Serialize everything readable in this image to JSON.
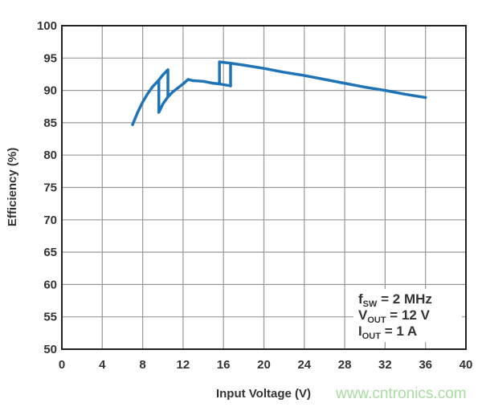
{
  "chart_data": {
    "type": "line",
    "title": "",
    "xlabel": "Input Voltage (V)",
    "ylabel": "Efficiency (%)",
    "xlim": [
      0,
      40
    ],
    "ylim": [
      50,
      100
    ],
    "xticks": [
      0,
      4,
      8,
      12,
      16,
      20,
      24,
      28,
      32,
      36,
      40
    ],
    "yticks": [
      50,
      55,
      60,
      65,
      70,
      75,
      80,
      85,
      90,
      95,
      100
    ],
    "grid": true,
    "line_color": "#1f73b7",
    "series": [
      {
        "segments": [
          [
            [
              7.0,
              84.7
            ],
            [
              7.5,
              86.6
            ],
            [
              8.0,
              88.2
            ],
            [
              8.5,
              89.5
            ],
            [
              9.0,
              90.6
            ],
            [
              9.6,
              91.6
            ],
            [
              10.0,
              92.4
            ],
            [
              10.5,
              93.2
            ],
            [
              10.5,
              89.0
            ]
          ],
          [
            [
              9.6,
              91.6
            ],
            [
              9.6,
              86.6
            ],
            [
              10.0,
              87.9
            ],
            [
              10.5,
              89.0
            ],
            [
              11.0,
              89.8
            ],
            [
              11.5,
              90.4
            ],
            [
              12.0,
              91.0
            ],
            [
              12.5,
              91.7
            ],
            [
              13.0,
              91.5
            ],
            [
              14.0,
              91.4
            ],
            [
              15.0,
              91.1
            ],
            [
              15.6,
              91.0
            ],
            [
              16.7,
              90.7
            ]
          ],
          [
            [
              15.6,
              91.0
            ],
            [
              15.6,
              94.4
            ],
            [
              16.7,
              94.2
            ],
            [
              16.7,
              90.7
            ]
          ],
          [
            [
              16.7,
              94.2
            ],
            [
              18.0,
              93.9
            ],
            [
              20.0,
              93.4
            ],
            [
              22.0,
              92.8
            ],
            [
              24.0,
              92.3
            ],
            [
              26.0,
              91.7
            ],
            [
              28.0,
              91.1
            ],
            [
              30.0,
              90.5
            ],
            [
              32.0,
              90.0
            ],
            [
              34.0,
              89.4
            ],
            [
              36.0,
              88.9
            ]
          ]
        ]
      }
    ],
    "annotation": {
      "lines": [
        {
          "main": "f",
          "sub": "SW",
          "rest": " = 2 MHz"
        },
        {
          "main": "V",
          "sub": "OUT",
          "rest": " = 12 V"
        },
        {
          "main": "I",
          "sub": "OUT",
          "rest": " = 1 A"
        }
      ]
    }
  },
  "watermark": "www.cntronics.com"
}
